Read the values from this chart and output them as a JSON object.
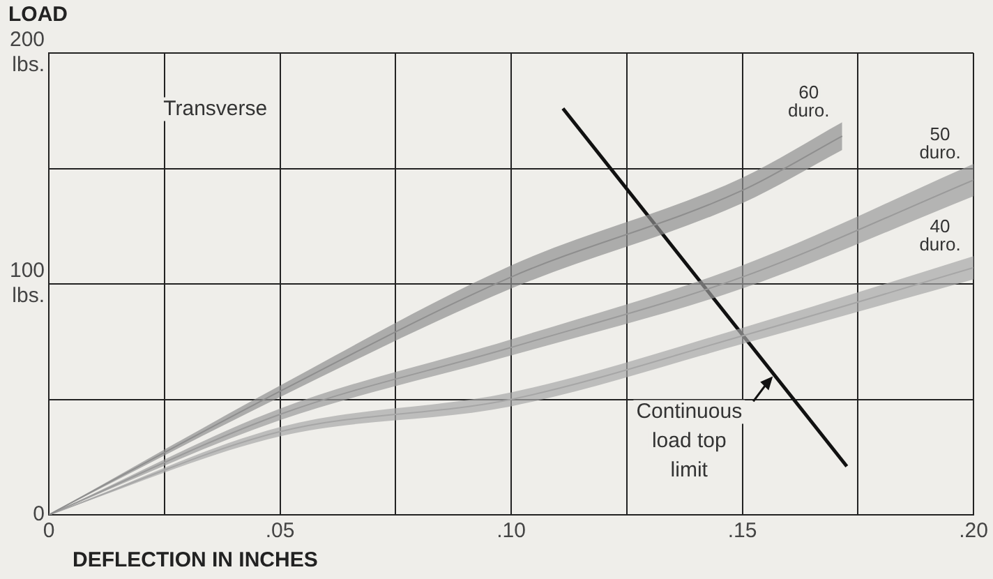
{
  "chart_data": {
    "type": "line",
    "ylabel": "LOAD",
    "xlabel": "DEFLECTION IN INCHES",
    "xlim": [
      0,
      0.2
    ],
    "xticks": [
      {
        "value": 0,
        "label": "0"
      },
      {
        "value": 0.025,
        "label": null
      },
      {
        "value": 0.05,
        "label": ".05"
      },
      {
        "value": 0.075,
        "label": null
      },
      {
        "value": 0.1,
        "label": ".10"
      },
      {
        "value": 0.125,
        "label": null
      },
      {
        "value": 0.15,
        "label": ".15"
      },
      {
        "value": 0.175,
        "label": null
      },
      {
        "value": 0.2,
        "label": ".20"
      }
    ],
    "ylim": [
      0,
      200
    ],
    "yticks": [
      0,
      {
        "value": 50,
        "label": null
      },
      {
        "value": 100,
        "label": "100 lbs."
      },
      {
        "value": 150,
        "label": null
      },
      {
        "value": 200,
        "label": "200 lbs."
      }
    ],
    "grid": true,
    "legend": false,
    "marker": "none",
    "annotations": [
      "Transverse",
      {
        "text": "Continuous load top limit",
        "x": 0.1566,
        "y": 60
      }
    ],
    "series": [
      {
        "name": "60 duro.",
        "color": "#8e8e8e",
        "x": [
          0,
          0.05,
          0.1,
          0.15,
          0.1716
        ],
        "values": [
          0,
          53.5,
          103,
          140.5,
          164
        ],
        "lower": [
          0,
          51,
          98,
          135,
          158
        ],
        "upper": [
          0,
          56,
          108,
          146,
          170
        ]
      },
      {
        "name": "50 duro.",
        "color": "#9a9a9a",
        "x": [
          0,
          0.05,
          0.1,
          0.15,
          0.2
        ],
        "values": [
          0,
          43.5,
          72.5,
          103,
          145
        ],
        "lower": [
          0,
          41,
          69,
          98,
          138
        ],
        "upper": [
          0,
          46,
          76,
          108,
          152
        ]
      },
      {
        "name": "40 duro.",
        "color": "#a6a6a6",
        "x": [
          0,
          0.05,
          0.1,
          0.15,
          0.2
        ],
        "values": [
          0,
          36,
          50,
          77.5,
          107
        ],
        "lower": [
          0,
          34,
          47,
          74,
          102
        ],
        "upper": [
          0,
          38,
          53,
          81,
          112
        ]
      },
      {
        "type": "line",
        "color": "#111111",
        "x": [
          0.1112,
          0.1726
        ],
        "values": [
          176,
          21
        ]
      }
    ]
  }
}
